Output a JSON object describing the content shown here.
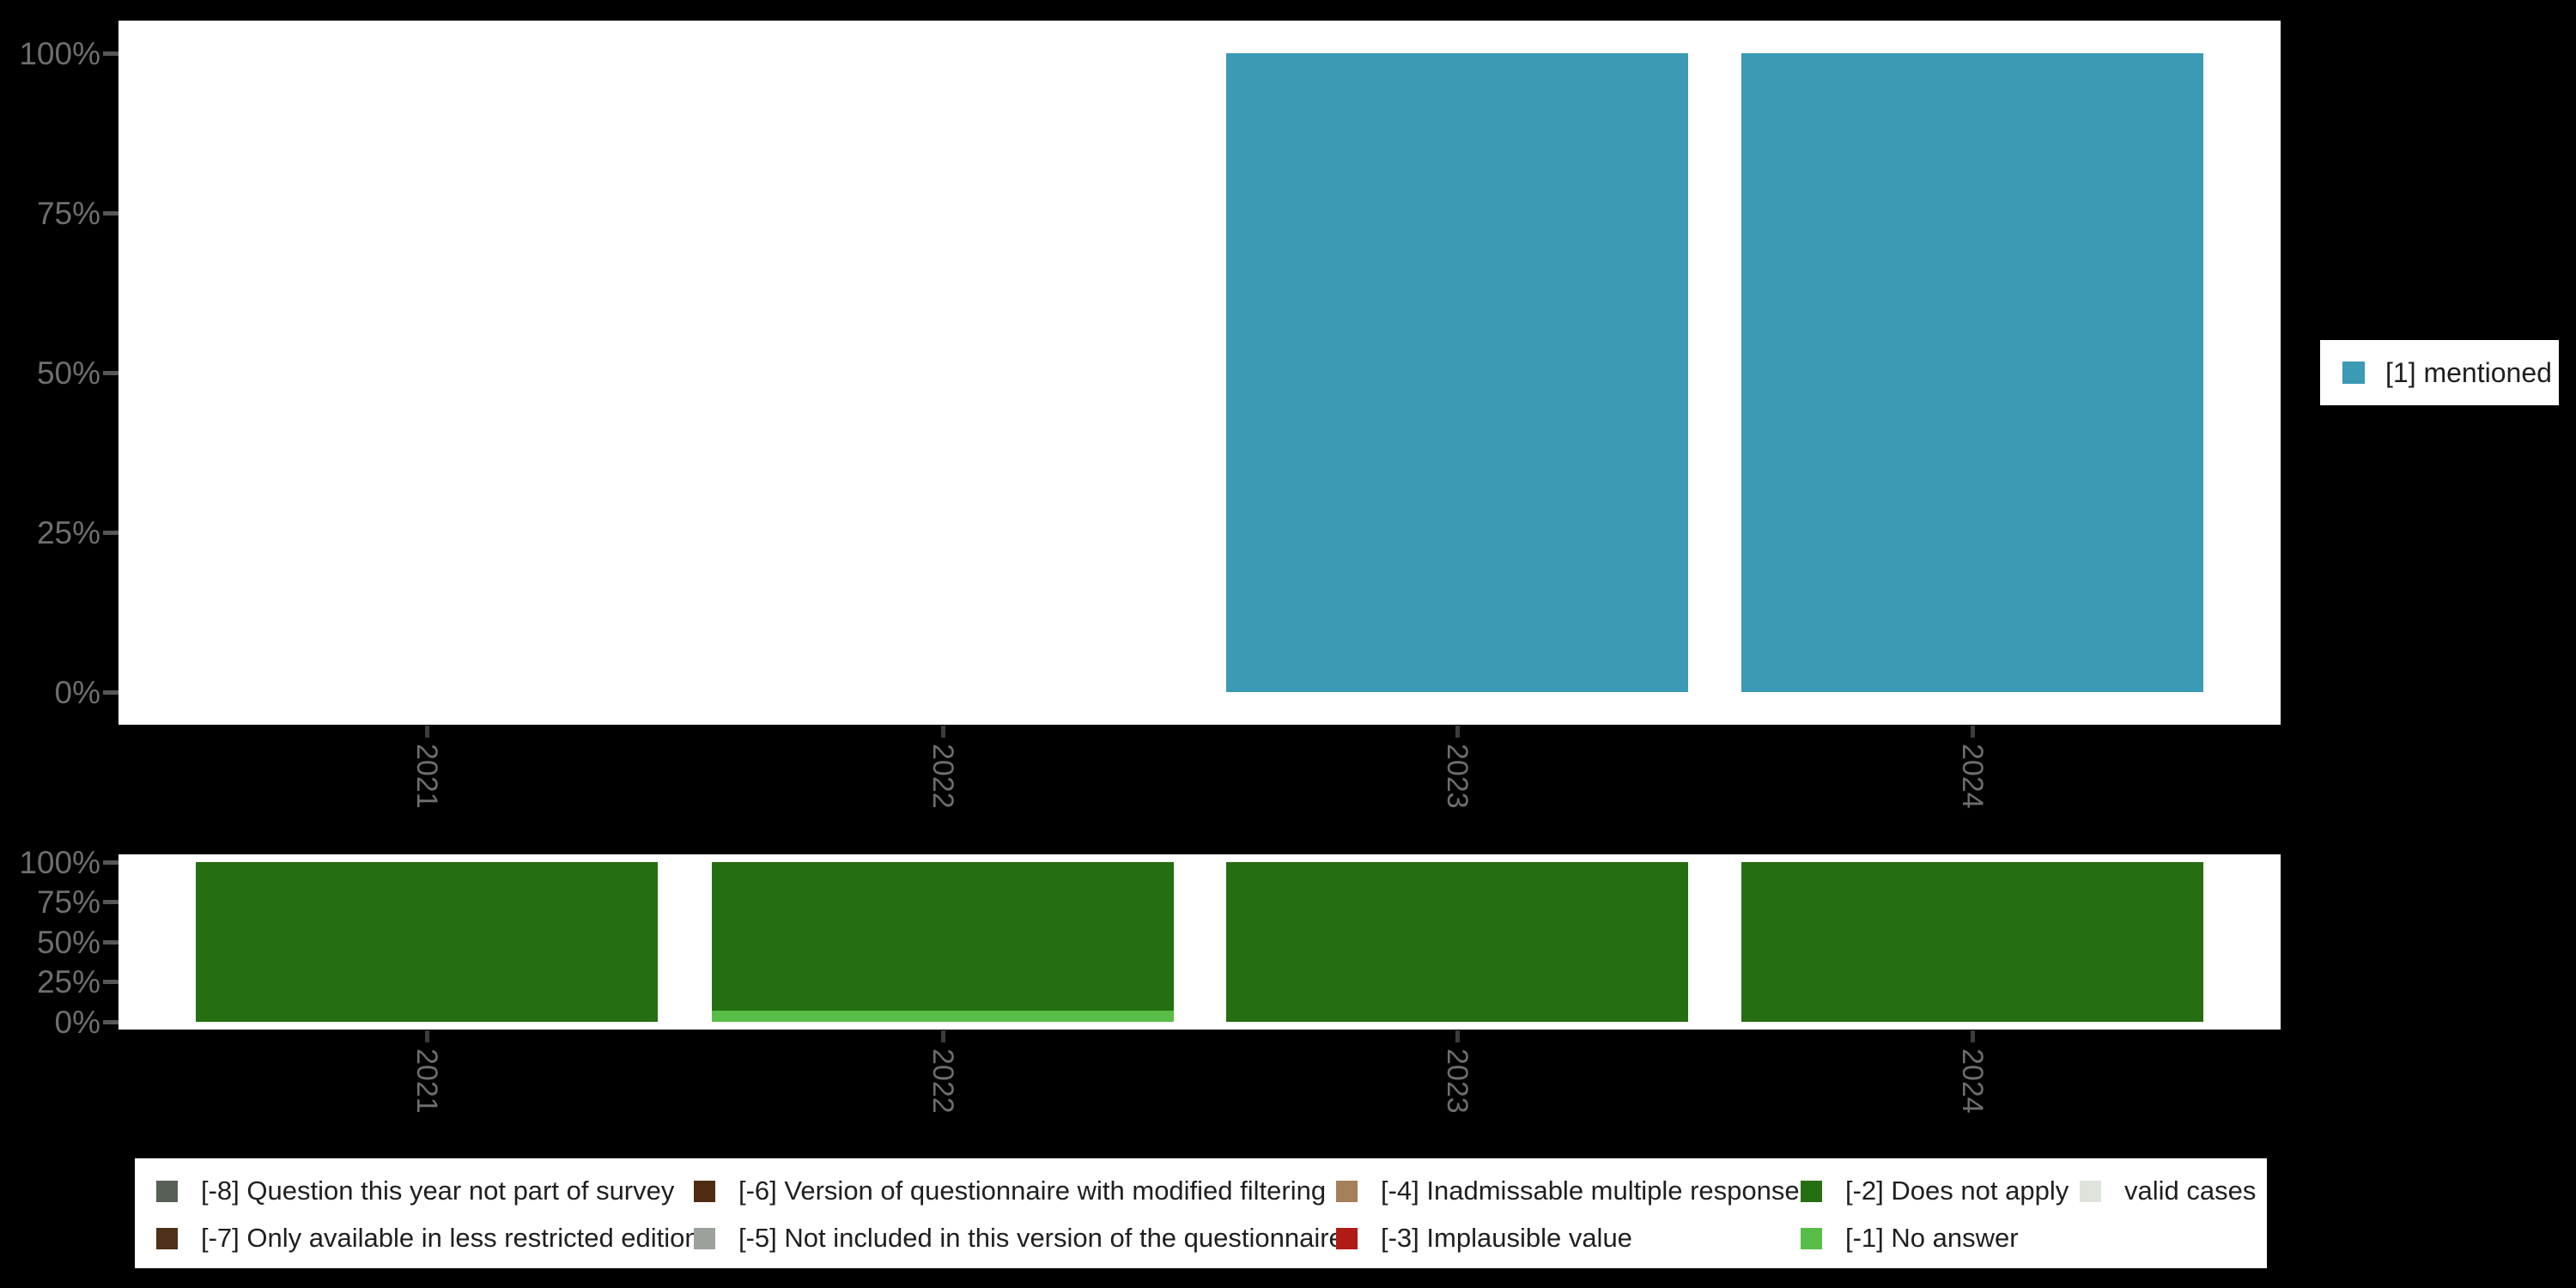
{
  "top_legend": {
    "label": "[1] mentioned",
    "color": "#3b9ab4"
  },
  "chart_data": [
    {
      "type": "bar",
      "title": "",
      "categories": [
        "2021",
        "2022",
        "2023",
        "2024"
      ],
      "series": [
        {
          "name": "[1] mentioned",
          "color": "#3b9ab4",
          "values": [
            null,
            null,
            100,
            100
          ]
        }
      ],
      "xlabel": "",
      "ylabel": "",
      "ylim": [
        0,
        100
      ],
      "y_ticks": [
        {
          "label": "100%",
          "value": 100
        },
        {
          "label": "75%",
          "value": 75
        },
        {
          "label": "50%",
          "value": 50
        },
        {
          "label": "25%",
          "value": 25
        },
        {
          "label": "0%",
          "value": 0
        }
      ],
      "grid": false,
      "legend_position": "right"
    },
    {
      "type": "bar",
      "stacked": true,
      "title": "",
      "categories": [
        "2021",
        "2022",
        "2023",
        "2024"
      ],
      "series": [
        {
          "name": "[-1] No answer",
          "color": "#58bd46",
          "values": [
            0,
            7,
            0,
            0
          ]
        },
        {
          "name": "[-2] Does not apply",
          "color": "#266e12",
          "values": [
            100,
            93,
            100,
            100
          ]
        }
      ],
      "xlabel": "",
      "ylabel": "",
      "ylim": [
        0,
        100
      ],
      "y_ticks": [
        {
          "label": "100%",
          "value": 100
        },
        {
          "label": "75%",
          "value": 75
        },
        {
          "label": "50%",
          "value": 50
        },
        {
          "label": "25%",
          "value": 25
        },
        {
          "label": "0%",
          "value": 0
        }
      ],
      "grid": false,
      "legend_position": "bottom"
    }
  ],
  "missing_value_legend": {
    "rows": [
      [
        {
          "label": "[-8] Question this year not part of survey",
          "color": "#566055"
        },
        {
          "label": "[-6] Version of questionnaire with modified filtering",
          "color": "#4f2d13"
        },
        {
          "label": "[-4] Inadmissable multiple response",
          "color": "#a6805a"
        },
        {
          "label": "[-2] Does not apply",
          "color": "#266e12"
        },
        {
          "label": "valid cases",
          "color": "#dfe4da"
        }
      ],
      [
        {
          "label": "[-7] Only available in less restricted edition",
          "color": "#4e3119"
        },
        {
          "label": "[-5] Not included in this version of the questionnaire",
          "color": "#9ba29b"
        },
        {
          "label": "[-3] Implausible value",
          "color": "#b01b15"
        },
        {
          "label": "[-1] No answer",
          "color": "#58bd46"
        }
      ]
    ]
  }
}
